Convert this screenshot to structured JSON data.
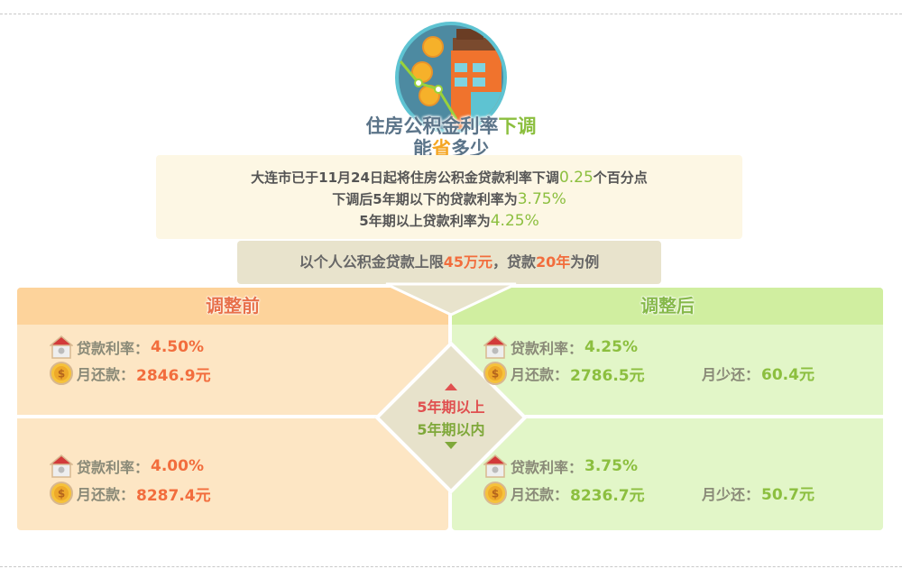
{
  "title": {
    "line1_a": "住房公积金利率",
    "line1_b": "下调",
    "line2_a": "能",
    "line2_b": "省",
    "line2_c": "多少"
  },
  "intro": {
    "l1_a": "大连市已于11月24日起将住房公积金贷款利率下调",
    "l1_b": "0.25",
    "l1_c": "个百分点",
    "l2_a": "下调后5年期以下的贷款利率为",
    "l2_b": "3.75%",
    "l3_a": "5年期以上贷款利率为",
    "l3_b": "4.25%"
  },
  "example": {
    "a": "以个人公积金贷款上限",
    "b": "45万元",
    "c": "，贷款",
    "d": "20年",
    "e": "为例"
  },
  "center": {
    "above": "5年期以上",
    "below": "5年期以内"
  },
  "before": {
    "title": "调整前",
    "above": {
      "rate_label": "贷款利率：",
      "rate": "4.50%",
      "pay_label": "月还款：",
      "pay": "2846.9元"
    },
    "below": {
      "rate_label": "贷款利率：",
      "rate": "4.00%",
      "pay_label": "月还款：",
      "pay": "8287.4元"
    }
  },
  "after": {
    "title": "调整后",
    "above": {
      "rate_label": "贷款利率：",
      "rate": "4.25%",
      "pay_label": "月还款：",
      "pay": "2786.5元",
      "save_label": "月少还：",
      "save": "60.4元"
    },
    "below": {
      "rate_label": "贷款利率：",
      "rate": "3.75%",
      "pay_label": "月还款：",
      "pay": "8236.7元",
      "save_label": "月少还：",
      "save": "50.7元"
    }
  },
  "colors": {
    "orange": "#f26d3d",
    "green": "#8cbf3f",
    "slate": "#5b7489",
    "red": "#e05050"
  }
}
